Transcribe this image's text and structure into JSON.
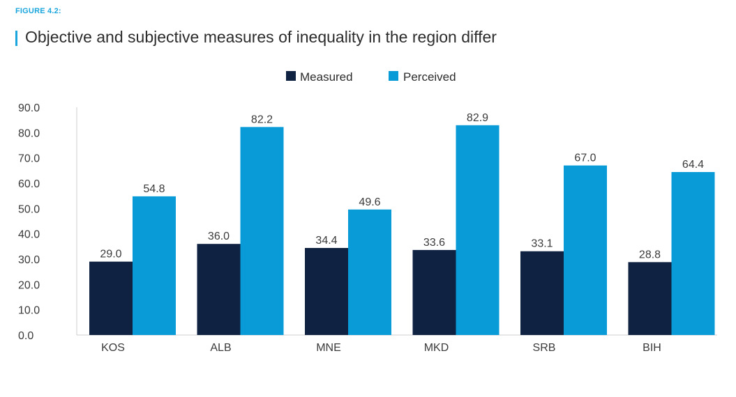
{
  "figure_label": "FIGURE 4.2:",
  "title": "Objective and subjective measures of inequality in the region differ",
  "colors": {
    "accent": "#1aa6dc",
    "measured": "#0f2241",
    "perceived": "#089bd8",
    "axis": "#cfcfcf"
  },
  "chart_data": {
    "type": "bar",
    "title": "Objective and subjective measures of inequality in the region differ",
    "xlabel": "",
    "ylabel": "",
    "categories": [
      "KOS",
      "ALB",
      "MNE",
      "MKD",
      "SRB",
      "BIH"
    ],
    "series": [
      {
        "name": "Measured",
        "values": [
          29.0,
          36.0,
          34.4,
          33.6,
          33.1,
          28.8
        ]
      },
      {
        "name": "Perceived",
        "values": [
          54.8,
          82.2,
          49.6,
          82.9,
          67.0,
          64.4
        ]
      }
    ],
    "value_labels": [
      [
        "29.0",
        "36.0",
        "34.4",
        "33.6",
        "33.1",
        "28.8"
      ],
      [
        "54.8",
        "82.2",
        "49.6",
        "82.9",
        "67.0",
        "64.4"
      ]
    ],
    "ylim": [
      0,
      90
    ],
    "yticks": [
      "0.0",
      "10.0",
      "20.0",
      "30.0",
      "40.0",
      "50.0",
      "60.0",
      "70.0",
      "80.0",
      "90.0"
    ],
    "grid": false,
    "legend_position": "top-center"
  }
}
